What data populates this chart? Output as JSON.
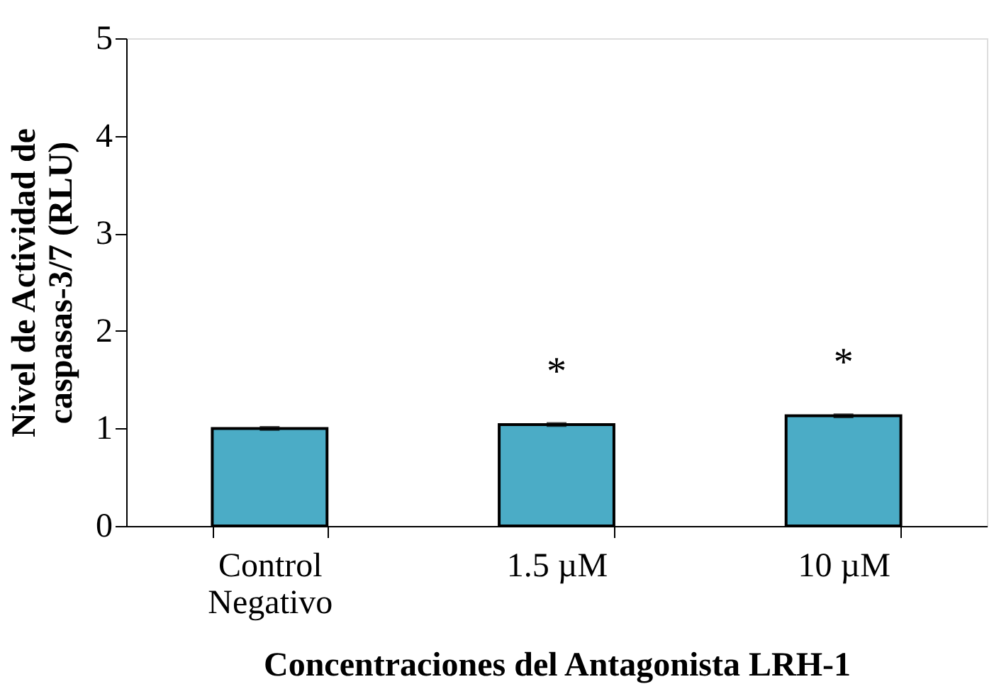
{
  "chart_data": {
    "type": "bar",
    "xlabel": "Concentraciones del Antagonista LRH-1",
    "ylabel": "Nivel de Actividad de caspasas-3/7 (RLU)",
    "categories": [
      "Control Negativo",
      "1.5 µM",
      "10 µM"
    ],
    "values": [
      1.0,
      1.04,
      1.13
    ],
    "errors": [
      0.01,
      0.01,
      0.01
    ],
    "color": "#4bacc6",
    "ylim": [
      0,
      5
    ],
    "yticks": [
      0,
      1,
      2,
      3,
      4,
      5
    ],
    "grid": false,
    "value_labels": [
      null,
      "*",
      "*"
    ]
  }
}
